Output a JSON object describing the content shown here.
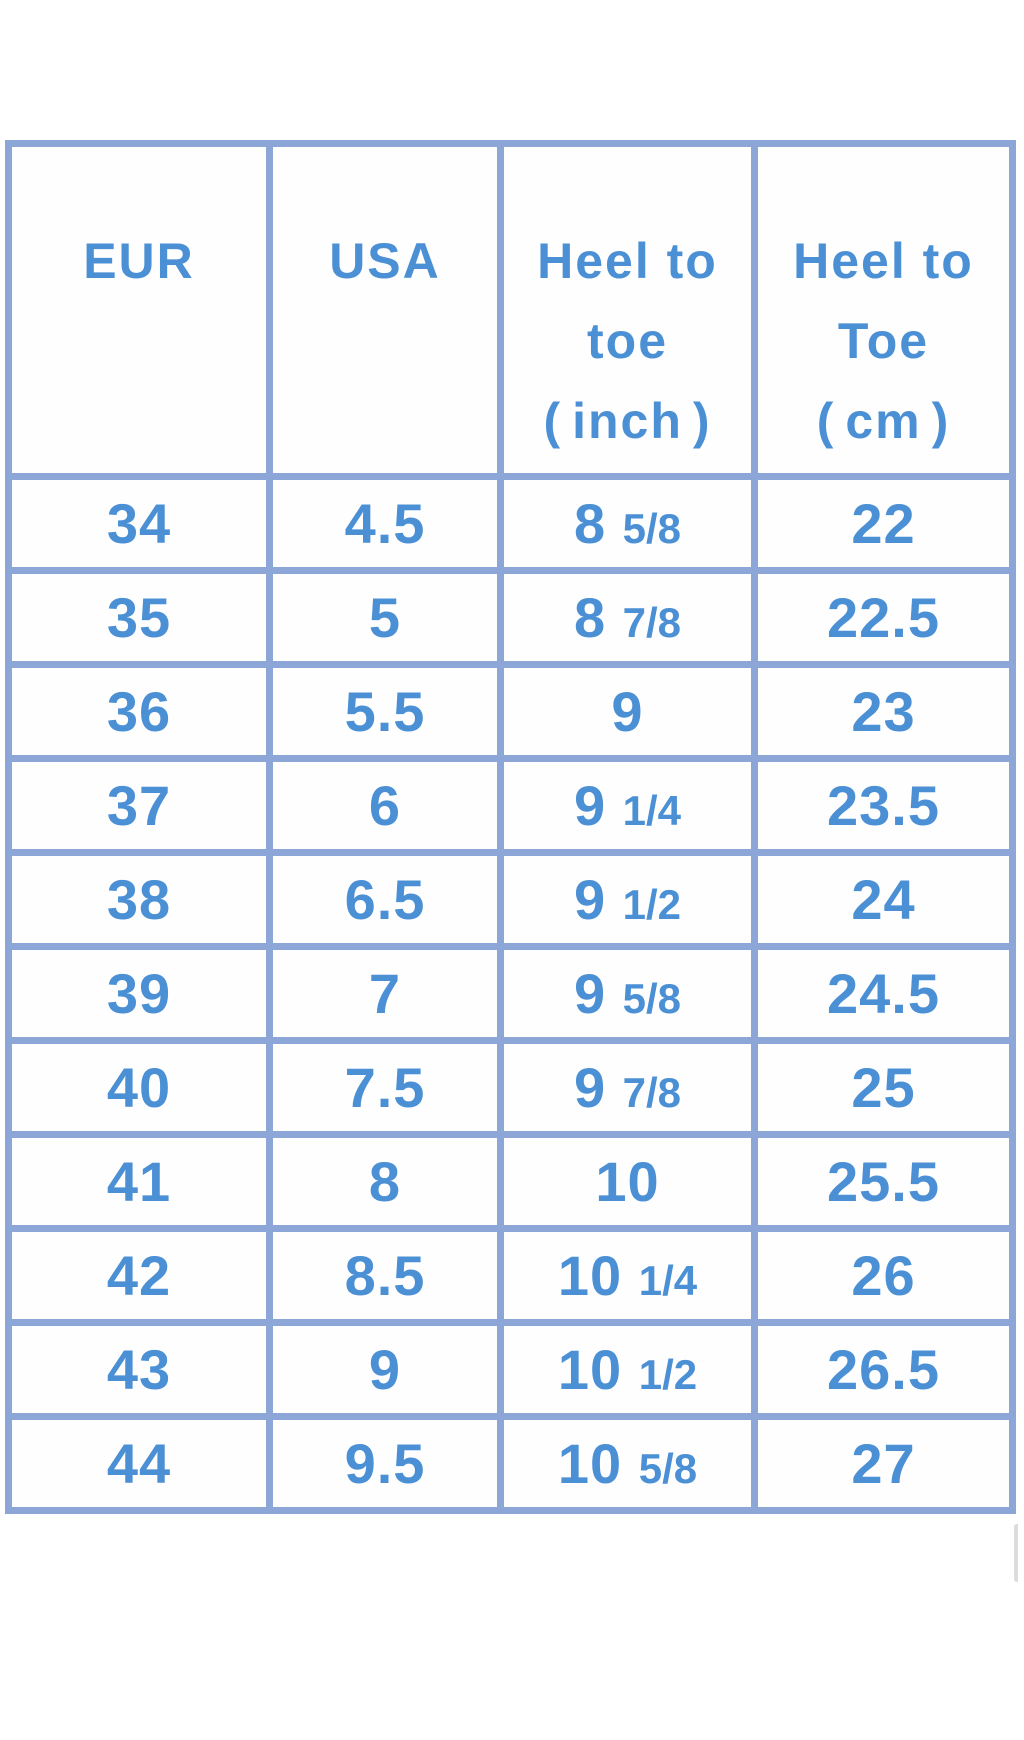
{
  "colors": {
    "text_blue": "#4b90d5",
    "border_blue": "#8da6d8",
    "background": "#ffffff"
  },
  "chart_data": {
    "type": "table",
    "title": "",
    "columns": [
      "EUR",
      "USA",
      "Heel to toe（inch）",
      "Heel to Toe（cm）"
    ],
    "rows": [
      [
        "34",
        "4.5",
        "8 5/8",
        "22"
      ],
      [
        "35",
        "5",
        "8 7/8",
        "22.5"
      ],
      [
        "36",
        "5.5",
        "9",
        "23"
      ],
      [
        "37",
        "6",
        "9 1/4",
        "23.5"
      ],
      [
        "38",
        "6.5",
        "9 1/2",
        "24"
      ],
      [
        "39",
        "7",
        "9 5/8",
        "24.5"
      ],
      [
        "40",
        "7.5",
        "9 7/8",
        "25"
      ],
      [
        "41",
        "8",
        "10",
        "25.5"
      ],
      [
        "42",
        "8.5",
        "10 1/4",
        "26"
      ],
      [
        "43",
        "9",
        "10 1/2",
        "26.5"
      ],
      [
        "44",
        "9.5",
        "10 5/8",
        "27"
      ]
    ]
  },
  "table": {
    "header_lines": [
      [
        "EUR"
      ],
      [
        "USA"
      ],
      [
        "Heel to",
        "toe",
        "(inch)"
      ],
      [
        "Heel to",
        "Toe",
        "(cm)"
      ]
    ]
  }
}
